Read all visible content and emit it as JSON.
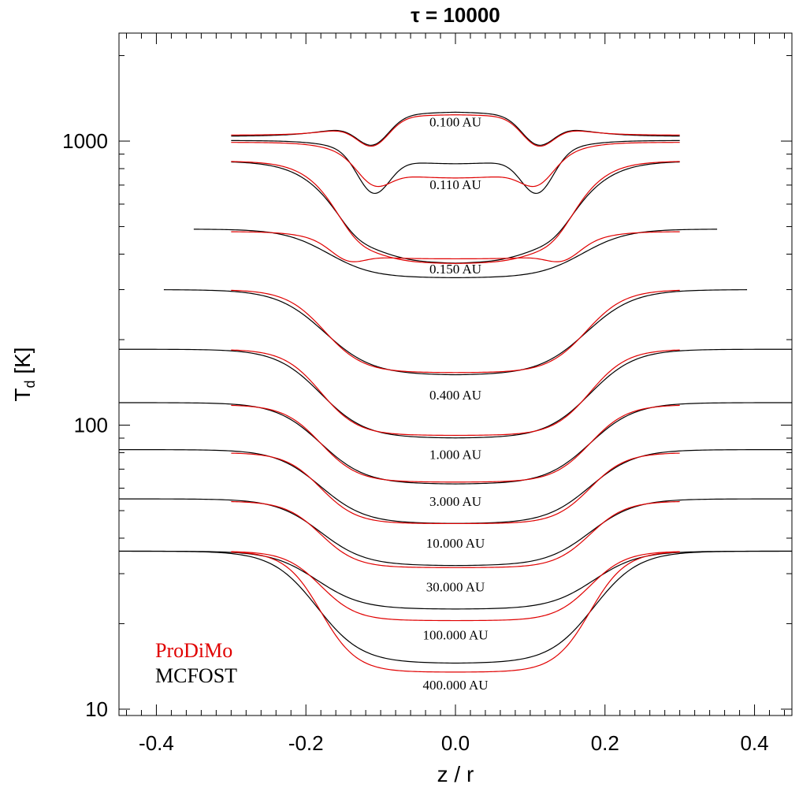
{
  "chart_data": {
    "type": "line",
    "title": "τ = 10000",
    "xlabel": "z / r",
    "ylabel": "T_d [K]",
    "ylabel_main": "T",
    "ylabel_sub": "d",
    "ylabel_unit": " [K]",
    "xlim": [
      -0.45,
      0.45
    ],
    "ylim": [
      9.5,
      2400
    ],
    "yscale": "log",
    "grid": false,
    "legend_position": "bottom-left",
    "x_ticks": [
      -0.4,
      -0.2,
      0.0,
      0.2,
      0.4
    ],
    "x_tick_labels": [
      "-0.4",
      "-0.2",
      "0.0",
      "0.2",
      "0.4"
    ],
    "y_ticks": [
      10,
      100,
      1000
    ],
    "y_tick_labels": [
      "10",
      "100",
      "1000"
    ],
    "colors": {
      "ProDiMo": "#e00000",
      "MCFOST": "#000000"
    },
    "legend": [
      {
        "name": "ProDiMo",
        "color": "#e00000"
      },
      {
        "name": "MCFOST",
        "color": "#000000"
      }
    ],
    "curves": [
      {
        "label": "0.100 AU",
        "mcfost": {
          "extent": 0.3,
          "outer": 1040,
          "center": 1270,
          "transition": 0.13,
          "width": 0.035,
          "dip": 0.82
        },
        "prodimo": {
          "extent": 0.3,
          "outer": 1050,
          "center": 1240,
          "transition": 0.13,
          "width": 0.03,
          "dip": 0.82
        }
      },
      {
        "label": "0.110 AU",
        "mcfost": {
          "extent": 0.3,
          "outer": 1005,
          "center": 830,
          "transition": 0.13,
          "width": 0.03,
          "dip": 0.74
        },
        "prodimo": {
          "extent": 0.3,
          "outer": 990,
          "center": 740,
          "transition": 0.13,
          "width": 0.026,
          "dip": 0.86
        }
      },
      {
        "label": "",
        "mcfost": {
          "extent": 0.3,
          "outer": 850,
          "center": 370,
          "transition": 0.155,
          "width": 0.03,
          "dip": 0.95
        },
        "prodimo": {
          "extent": 0.3,
          "outer": 850,
          "center": 370,
          "transition": 0.155,
          "width": 0.026,
          "dip": 0.95
        }
      },
      {
        "label": "0.150 AU",
        "mcfost": {
          "extent": 0.35,
          "outer": 490,
          "center": 330,
          "transition": 0.17,
          "width": 0.03,
          "dip": 1.0
        },
        "prodimo": {
          "extent": 0.3,
          "outer": 480,
          "center": 385,
          "transition": 0.165,
          "width": 0.025,
          "dip": 0.92
        }
      },
      {
        "label": "0.400 AU",
        "mcfost": {
          "extent": 0.39,
          "outer": 300,
          "center": 150,
          "transition": 0.175,
          "width": 0.032,
          "dip": 1.0
        },
        "prodimo": {
          "extent": 0.3,
          "outer": 300,
          "center": 153,
          "transition": 0.175,
          "width": 0.026,
          "dip": 1.0
        }
      },
      {
        "label": "1.000 AU",
        "mcfost": {
          "extent": 0.45,
          "outer": 185,
          "center": 90,
          "transition": 0.18,
          "width": 0.03,
          "dip": 1.0
        },
        "prodimo": {
          "extent": 0.3,
          "outer": 185,
          "center": 92,
          "transition": 0.18,
          "width": 0.025,
          "dip": 1.0
        }
      },
      {
        "label": "3.000 AU",
        "mcfost": {
          "extent": 0.45,
          "outer": 120,
          "center": 62,
          "transition": 0.18,
          "width": 0.03,
          "dip": 1.0
        },
        "prodimo": {
          "extent": 0.3,
          "outer": 118,
          "center": 63,
          "transition": 0.18,
          "width": 0.025,
          "dip": 1.0
        }
      },
      {
        "label": "10.000 AU",
        "mcfost": {
          "extent": 0.45,
          "outer": 82,
          "center": 45,
          "transition": 0.18,
          "width": 0.03,
          "dip": 1.0
        },
        "prodimo": {
          "extent": 0.3,
          "outer": 80,
          "center": 45,
          "transition": 0.18,
          "width": 0.024,
          "dip": 1.0
        }
      },
      {
        "label": "30.000 AU",
        "mcfost": {
          "extent": 0.45,
          "outer": 55,
          "center": 32,
          "transition": 0.18,
          "width": 0.03,
          "dip": 1.0
        },
        "prodimo": {
          "extent": 0.3,
          "outer": 54,
          "center": 31.5,
          "transition": 0.18,
          "width": 0.024,
          "dip": 1.0
        }
      },
      {
        "label": "100.000 AU",
        "mcfost": {
          "extent": 0.45,
          "outer": 36,
          "center": 22.5,
          "transition": 0.185,
          "width": 0.03,
          "dip": 1.0
        },
        "prodimo": {
          "extent": 0.3,
          "outer": 36,
          "center": 20.5,
          "transition": 0.18,
          "width": 0.024,
          "dip": 1.0
        }
      },
      {
        "label": "400.000 AU",
        "mcfost": {
          "extent": 0.45,
          "outer": 36,
          "center": 14.5,
          "transition": 0.185,
          "width": 0.03,
          "dip": 1.0
        },
        "prodimo": {
          "extent": 0.3,
          "outer": 36,
          "center": 13.5,
          "transition": 0.18,
          "width": 0.024,
          "dip": 1.0
        }
      }
    ],
    "curve_label_values": [
      {
        "text": "0.100 AU",
        "y": 1170
      },
      {
        "text": "0.110 AU",
        "y": 705
      },
      {
        "text": "0.150 AU",
        "y": 355
      },
      {
        "text": "0.400 AU",
        "y": 128
      },
      {
        "text": "1.000 AU",
        "y": 79
      },
      {
        "text": "3.000 AU",
        "y": 54
      },
      {
        "text": "10.000 AU",
        "y": 38.5
      },
      {
        "text": "30.000 AU",
        "y": 27
      },
      {
        "text": "100.000 AU",
        "y": 18.3
      },
      {
        "text": "400.000 AU",
        "y": 12.2
      }
    ]
  }
}
